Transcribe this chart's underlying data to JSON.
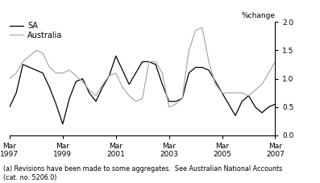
{
  "title_right": "%change",
  "legend_sa": "SA",
  "legend_aus": "Australia",
  "color_sa": "#000000",
  "color_aus": "#aaaaaa",
  "footnote": "(a) Revisions have been made to some aggregates.  See Australian National Accounts\n(cat. no. 5206.0)",
  "ylim": [
    0,
    2.0
  ],
  "yticks": [
    0,
    0.5,
    1.0,
    1.5,
    2.0
  ],
  "xtick_labels": [
    "Mar\n1997",
    "Mar\n1999",
    "Mar\n2001",
    "Mar\n2003",
    "Mar\n2005",
    "Mar\n2007"
  ],
  "xtick_positions": [
    0,
    8,
    16,
    24,
    32,
    40
  ],
  "sa_x": [
    0,
    1,
    2,
    3,
    4,
    5,
    6,
    7,
    8,
    9,
    10,
    11,
    12,
    13,
    14,
    15,
    16,
    17,
    18,
    19,
    20,
    21,
    22,
    23,
    24,
    25,
    26,
    27,
    28,
    29,
    30,
    31,
    32,
    33,
    34,
    35,
    36,
    37,
    38,
    39,
    40
  ],
  "sa_y": [
    0.5,
    0.75,
    1.25,
    1.2,
    1.15,
    1.1,
    0.85,
    0.55,
    0.2,
    0.65,
    0.95,
    1.0,
    0.75,
    0.6,
    0.85,
    1.05,
    1.4,
    1.15,
    0.9,
    1.1,
    1.3,
    1.3,
    1.25,
    0.9,
    0.6,
    0.6,
    0.65,
    1.1,
    1.2,
    1.2,
    1.15,
    0.95,
    0.75,
    0.55,
    0.35,
    0.6,
    0.7,
    0.5,
    0.4,
    0.5,
    0.55
  ],
  "aus_x": [
    0,
    1,
    2,
    3,
    4,
    5,
    6,
    7,
    8,
    9,
    10,
    11,
    12,
    13,
    14,
    15,
    16,
    17,
    18,
    19,
    20,
    21,
    22,
    23,
    24,
    25,
    26,
    27,
    28,
    29,
    30,
    31,
    32,
    33,
    34,
    35,
    36,
    37,
    38,
    39,
    40
  ],
  "aus_y": [
    1.0,
    1.1,
    1.3,
    1.4,
    1.5,
    1.45,
    1.2,
    1.1,
    1.1,
    1.15,
    1.05,
    0.95,
    0.8,
    0.7,
    0.9,
    1.05,
    1.1,
    0.85,
    0.7,
    0.6,
    0.65,
    1.3,
    1.3,
    1.1,
    0.5,
    0.55,
    0.65,
    1.5,
    1.85,
    1.9,
    1.3,
    0.9,
    0.75,
    0.75,
    0.75,
    0.75,
    0.7,
    0.8,
    0.9,
    1.1,
    1.3
  ],
  "linewidth": 0.9,
  "tick_fontsize": 6.5,
  "legend_fontsize": 7,
  "footnote_fontsize": 5.8
}
